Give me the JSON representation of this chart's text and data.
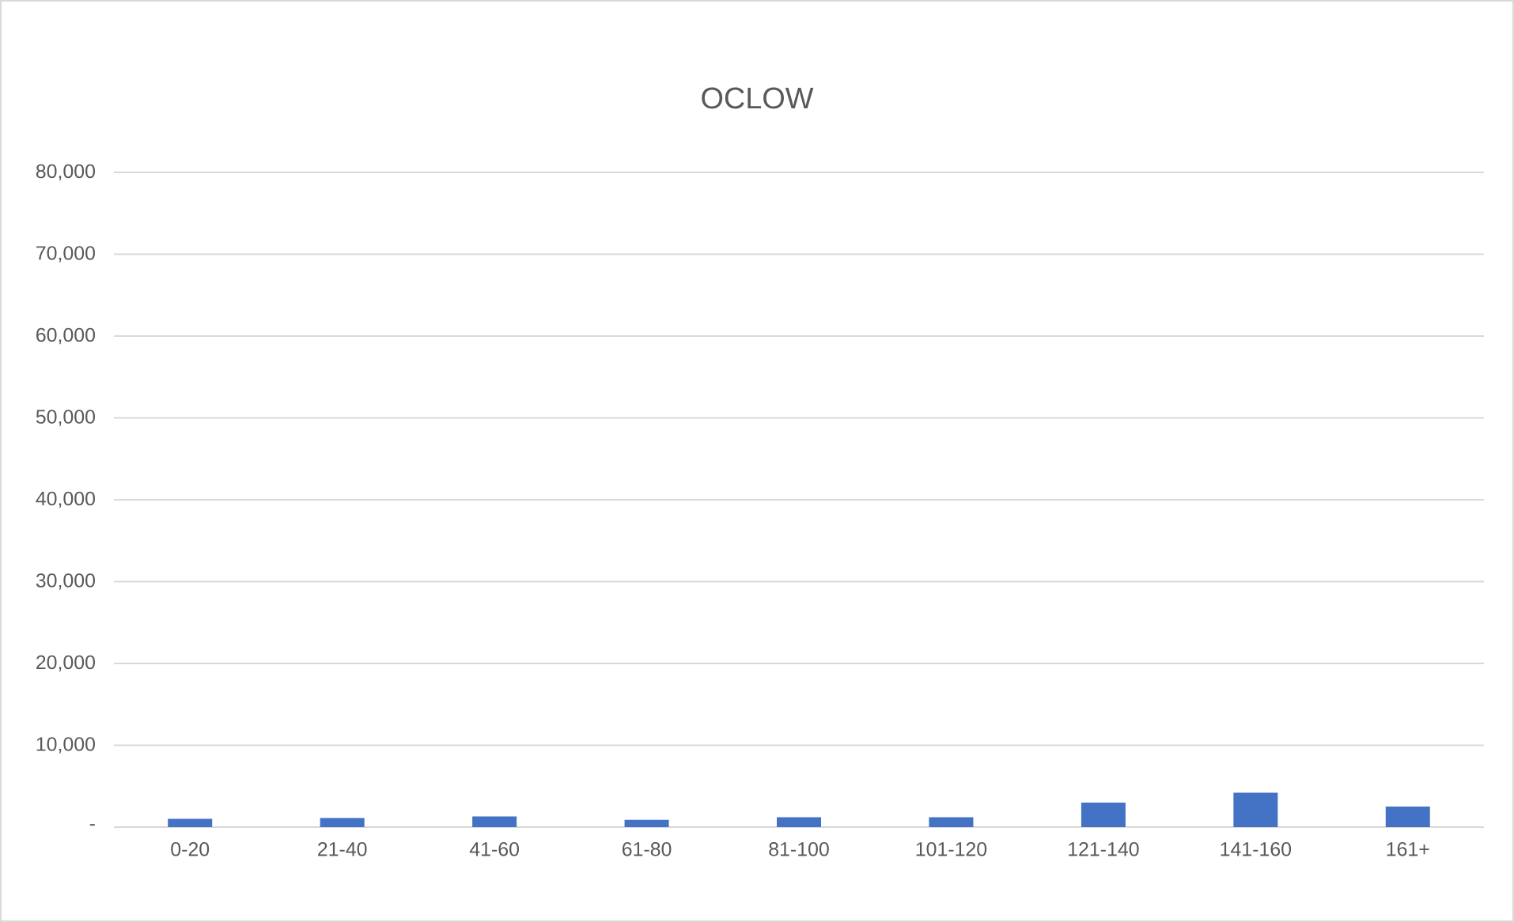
{
  "chart_data": {
    "type": "bar",
    "title": "OCLOW",
    "categories": [
      "0-20",
      "21-40",
      "41-60",
      "61-80",
      "81-100",
      "101-120",
      "121-140",
      "141-160",
      "161+"
    ],
    "values": [
      1000,
      1100,
      1300,
      900,
      1200,
      1200,
      3000,
      4200,
      2500
    ],
    "color": "#4472c4",
    "ylim": [
      0,
      80000
    ],
    "yticks": [
      {
        "value": 0,
        "label": "-"
      },
      {
        "value": 10000,
        "label": "10,000"
      },
      {
        "value": 20000,
        "label": "20,000"
      },
      {
        "value": 30000,
        "label": "30,000"
      },
      {
        "value": 40000,
        "label": "40,000"
      },
      {
        "value": 50000,
        "label": "50,000"
      },
      {
        "value": 60000,
        "label": "60,000"
      },
      {
        "value": 70000,
        "label": "70,000"
      },
      {
        "value": 80000,
        "label": "80,000"
      }
    ],
    "grid": "y"
  }
}
